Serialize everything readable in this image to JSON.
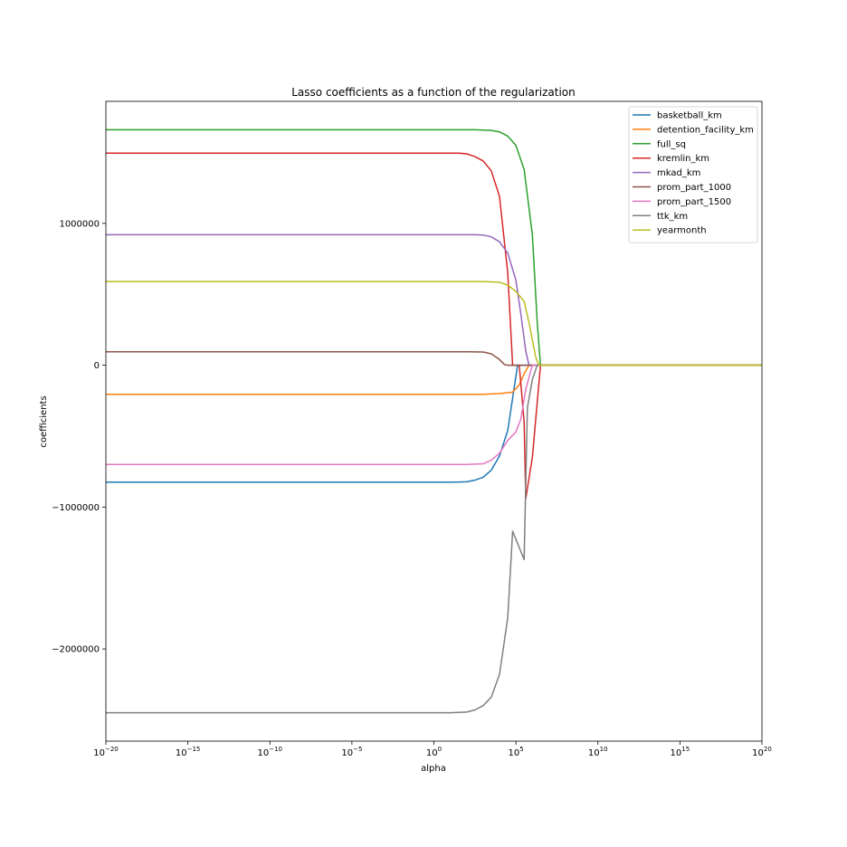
{
  "chart_data": {
    "type": "line",
    "title": "Lasso coefficients as a function of the regularization",
    "xlabel": "alpha",
    "ylabel": "coefficients",
    "xscale": "log",
    "xlim": [
      -20,
      20
    ],
    "ylim": [
      -2650000,
      1860000
    ],
    "x_ticks": [
      {
        "exp": -20,
        "label": "10",
        "sup": "−20"
      },
      {
        "exp": -15,
        "label": "10",
        "sup": "−15"
      },
      {
        "exp": -10,
        "label": "10",
        "sup": "−10"
      },
      {
        "exp": -5,
        "label": "10",
        "sup": "−5"
      },
      {
        "exp": 0,
        "label": "10",
        "sup": "0"
      },
      {
        "exp": 5,
        "label": "10",
        "sup": "5"
      },
      {
        "exp": 10,
        "label": "10",
        "sup": "10"
      },
      {
        "exp": 15,
        "label": "10",
        "sup": "15"
      },
      {
        "exp": 20,
        "label": "10",
        "sup": "20"
      }
    ],
    "y_ticks": [
      {
        "value": 1000000,
        "label": "1000000"
      },
      {
        "value": 0,
        "label": "0"
      },
      {
        "value": -1000000,
        "label": "−1000000"
      },
      {
        "value": -2000000,
        "label": "−2000000"
      }
    ],
    "grid": false,
    "legend_position": "top-right",
    "series": [
      {
        "name": "basketball_km",
        "color": "#1f77b4",
        "points": [
          [
            -20,
            -825000
          ],
          [
            1,
            -825000
          ],
          [
            2,
            -822000
          ],
          [
            2.5,
            -810000
          ],
          [
            3,
            -790000
          ],
          [
            3.5,
            -740000
          ],
          [
            4,
            -640000
          ],
          [
            4.5,
            -460000
          ],
          [
            5,
            -80000
          ],
          [
            5.1,
            0
          ],
          [
            20,
            0
          ]
        ]
      },
      {
        "name": "detention_facility_km",
        "color": "#ff7f0e",
        "points": [
          [
            -20,
            -205000
          ],
          [
            3,
            -205000
          ],
          [
            4,
            -200000
          ],
          [
            4.8,
            -190000
          ],
          [
            5.2,
            -140000
          ],
          [
            5.5,
            -60000
          ],
          [
            5.8,
            0
          ],
          [
            20,
            0
          ]
        ]
      },
      {
        "name": "full_sq",
        "color": "#2ca02c",
        "points": [
          [
            -20,
            1660000
          ],
          [
            2.5,
            1660000
          ],
          [
            3.5,
            1655000
          ],
          [
            4,
            1645000
          ],
          [
            4.5,
            1615000
          ],
          [
            5,
            1550000
          ],
          [
            5.5,
            1380000
          ],
          [
            6,
            920000
          ],
          [
            6.3,
            300000
          ],
          [
            6.5,
            0
          ],
          [
            20,
            0
          ]
        ]
      },
      {
        "name": "kremlin_km",
        "color": "#d62728",
        "points": [
          [
            -20,
            1495000
          ],
          [
            1.5,
            1495000
          ],
          [
            2,
            1490000
          ],
          [
            2.5,
            1470000
          ],
          [
            3,
            1440000
          ],
          [
            3.5,
            1370000
          ],
          [
            4,
            1190000
          ],
          [
            4.5,
            650000
          ],
          [
            4.8,
            0
          ],
          [
            5.2,
            0
          ],
          [
            5.5,
            -400000
          ],
          [
            5.6,
            -940000
          ],
          [
            6,
            -650000
          ],
          [
            6.5,
            0
          ],
          [
            20,
            0
          ]
        ]
      },
      {
        "name": "mkad_km",
        "color": "#9467bd",
        "points": [
          [
            -20,
            920000
          ],
          [
            2.5,
            920000
          ],
          [
            3,
            918000
          ],
          [
            3.5,
            905000
          ],
          [
            4,
            870000
          ],
          [
            4.5,
            790000
          ],
          [
            5,
            600000
          ],
          [
            5.3,
            360000
          ],
          [
            5.6,
            100000
          ],
          [
            5.8,
            0
          ],
          [
            20,
            0
          ]
        ]
      },
      {
        "name": "prom_part_1000",
        "color": "#8c564b",
        "points": [
          [
            -20,
            95000
          ],
          [
            2,
            95000
          ],
          [
            3,
            93000
          ],
          [
            3.5,
            80000
          ],
          [
            4,
            40000
          ],
          [
            4.3,
            5000
          ],
          [
            4.5,
            0
          ],
          [
            20,
            0
          ]
        ]
      },
      {
        "name": "prom_part_1500",
        "color": "#e377c2",
        "points": [
          [
            -20,
            -700000
          ],
          [
            2,
            -700000
          ],
          [
            3,
            -695000
          ],
          [
            3.5,
            -670000
          ],
          [
            4,
            -620000
          ],
          [
            4.5,
            -530000
          ],
          [
            5,
            -470000
          ],
          [
            5.3,
            -380000
          ],
          [
            5.6,
            -170000
          ],
          [
            6,
            0
          ],
          [
            20,
            0
          ]
        ]
      },
      {
        "name": "ttk_km",
        "color": "#7f7f7f",
        "points": [
          [
            -20,
            -2450000
          ],
          [
            1,
            -2450000
          ],
          [
            2,
            -2445000
          ],
          [
            2.5,
            -2430000
          ],
          [
            3,
            -2400000
          ],
          [
            3.5,
            -2340000
          ],
          [
            4,
            -2180000
          ],
          [
            4.5,
            -1780000
          ],
          [
            4.8,
            -1170000
          ],
          [
            5.5,
            -1370000
          ],
          [
            5.7,
            -300000
          ],
          [
            6,
            -100000
          ],
          [
            6.3,
            0
          ],
          [
            20,
            0
          ]
        ]
      },
      {
        "name": "yearmonth",
        "color": "#bcbd22",
        "points": [
          [
            -20,
            590000
          ],
          [
            3,
            590000
          ],
          [
            4,
            585000
          ],
          [
            4.5,
            565000
          ],
          [
            5,
            520000
          ],
          [
            5.5,
            450000
          ],
          [
            5.8,
            300000
          ],
          [
            6.2,
            60000
          ],
          [
            6.4,
            0
          ],
          [
            20,
            0
          ]
        ]
      }
    ]
  }
}
